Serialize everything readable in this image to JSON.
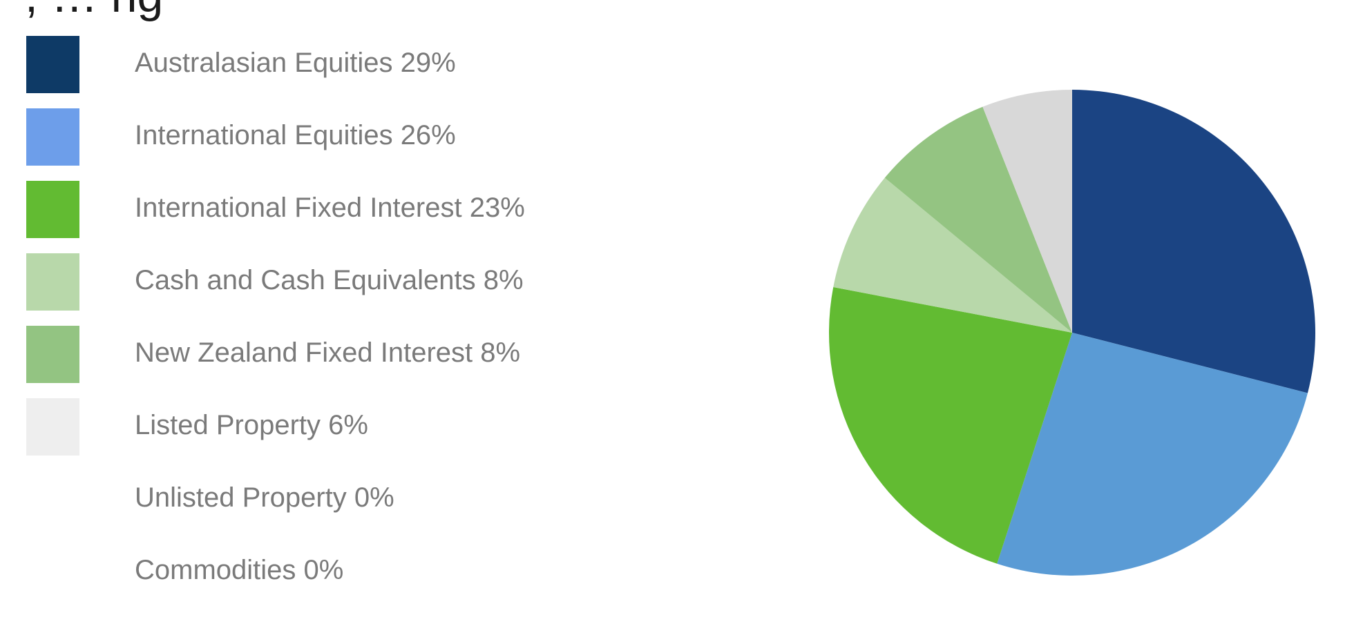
{
  "chart_data": {
    "type": "pie",
    "heading_fragment": ", … ng",
    "legend_position": "left",
    "slices": [
      {
        "label": "Australasian Equities 29%",
        "name": "Australasian Equities",
        "value": 29,
        "legend_color": "#0e3a66",
        "slice_color": "#1b4483"
      },
      {
        "label": "International Equities 26%",
        "name": "International Equities",
        "value": 26,
        "legend_color": "#6d9eea",
        "slice_color": "#5a9bd5"
      },
      {
        "label": "International Fixed Interest 23%",
        "name": "International Fixed Interest",
        "value": 23,
        "legend_color": "#62bb32",
        "slice_color": "#62bb32"
      },
      {
        "label": "Cash and Cash Equivalents 8%",
        "name": "Cash and Cash Equivalents",
        "value": 8,
        "legend_color": "#b8d8aa",
        "slice_color": "#94c482"
      },
      {
        "label": "New Zealand Fixed Interest 8%",
        "name": "New Zealand Fixed Interest",
        "value": 8,
        "legend_color": "#93c482",
        "slice_color": "#b8d8aa"
      },
      {
        "label": "Listed Property 6%",
        "name": "Listed Property",
        "value": 6,
        "legend_color": "#eeeeee",
        "slice_color": "#d8d8d8"
      },
      {
        "label": "Unlisted Property 0%",
        "name": "Unlisted Property",
        "value": 0,
        "legend_color": "",
        "slice_color": ""
      },
      {
        "label": "Commodities 0%",
        "name": "Commodities",
        "value": 0,
        "legend_color": "",
        "slice_color": ""
      }
    ],
    "slice_draw_order": [
      0,
      1,
      2,
      4,
      3,
      5
    ]
  }
}
